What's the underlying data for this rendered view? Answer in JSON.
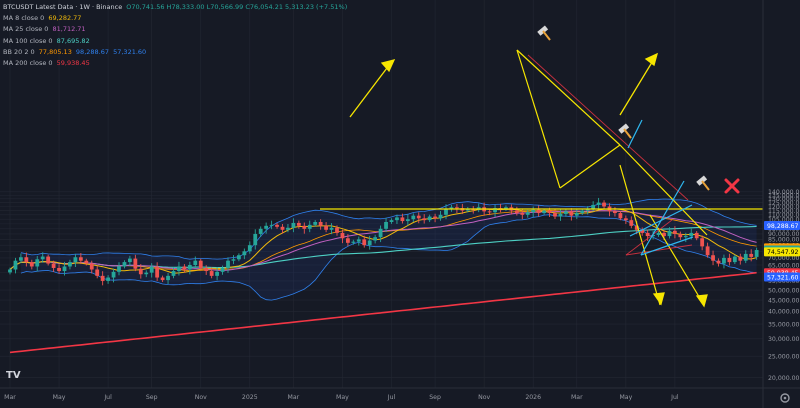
{
  "header": {
    "title": "BTCUSDT Latest Data · 1W · Binance",
    "ohlc": "O70,741.56 H78,333.00 L70,566.99 C76,054.21 5,313.23 (+7.51%)"
  },
  "indicators": [
    {
      "label": "MA 8 close 0",
      "value": "69,282.77",
      "color": "#f0b90b"
    },
    {
      "label": "MA 25 close 0",
      "value": "81,712.71",
      "color": "#c060c0"
    },
    {
      "label": "MA 100 close 0",
      "value": "87,695.82",
      "color": "#4dd0c4"
    },
    {
      "label": "BB 20 2 0",
      "value": "77,805.13",
      "value2": "98,288.67",
      "value3": "57,321.60",
      "color": "#ff9800",
      "color2": "#2f80ed"
    },
    {
      "label": "MA 200 close 0",
      "value": "59,938.45",
      "color": "#f23645"
    }
  ],
  "price_labels": [
    {
      "value": "98,288.67",
      "price": 98288.67,
      "bg": "#2962ff",
      "fg": "#ffffff"
    },
    {
      "value": "77,805.13",
      "price": 77805.13,
      "bg": "#ff9800",
      "fg": "#000000"
    },
    {
      "value": "76,054.21",
      "price": 76054.21,
      "bg": "#26a69a",
      "fg": "#ffffff"
    },
    {
      "value": "74,547.92",
      "price": 74547.92,
      "bg": "#f7e600",
      "fg": "#000000"
    },
    {
      "value": "59,938.45",
      "price": 59938.45,
      "bg": "#f23645",
      "fg": "#ffffff"
    },
    {
      "value": "57,321.60",
      "price": 57321.6,
      "bg": "#2962ff",
      "fg": "#ffffff"
    }
  ],
  "logo_text": "TV",
  "chart_data": {
    "type": "candlestick",
    "y_scale": "log",
    "ylim": [
      20000,
      140000
    ],
    "y_ticks": [
      "20,000.00",
      "25,000.00",
      "30,000.00",
      "35,000.00",
      "40,000.00",
      "45,000.00",
      "50,000.00",
      "55,000.00",
      "60,000.00",
      "65,000.00",
      "70,000.00",
      "75,000.00",
      "80,000.00",
      "85,000.00",
      "90,000.00",
      "95,000.00",
      "100,000.00",
      "105,000.00",
      "110,000.00",
      "115,000.00",
      "120,000.00",
      "125,000.00",
      "130,000.00",
      "135,000.00",
      "140,000.00"
    ],
    "y_tick_values": [
      20000,
      25000,
      30000,
      35000,
      40000,
      45000,
      50000,
      55000,
      60000,
      65000,
      70000,
      75000,
      80000,
      85000,
      90000,
      95000,
      100000,
      105000,
      110000,
      115000,
      120000,
      125000,
      130000,
      135000,
      140000
    ],
    "x_ticks": [
      "Mar",
      "May",
      "Jul",
      "Sep",
      "Nov",
      "2025",
      "Mar",
      "May",
      "Jul",
      "Sep",
      "Nov",
      "2026",
      "Mar",
      "May",
      "Jul"
    ],
    "x_tick_weeks": [
      0,
      9,
      18,
      26,
      35,
      44,
      52,
      61,
      70,
      78,
      87,
      96,
      104,
      113,
      122
    ],
    "horizontal_line": 74547.92,
    "closes": [
      62000,
      68000,
      70500,
      67000,
      64000,
      69000,
      71000,
      66000,
      63000,
      61000,
      64000,
      67000,
      70500,
      68000,
      66000,
      62000,
      58000,
      55000,
      57000,
      60500,
      64000,
      67000,
      69500,
      62500,
      59000,
      60000,
      64000,
      57000,
      55500,
      58000,
      61000,
      64000,
      62000,
      65000,
      68000,
      63000,
      61000,
      58000,
      60500,
      63000,
      68000,
      69000,
      72000,
      75000,
      80000,
      90000,
      95000,
      98000,
      99000,
      97000,
      94000,
      96000,
      101000,
      98000,
      95000,
      99000,
      102000,
      98000,
      94000,
      96000,
      91000,
      86000,
      82000,
      83000,
      85000,
      80000,
      84000,
      87000,
      95000,
      102000,
      104000,
      107000,
      103000,
      105000,
      109000,
      106000,
      104000,
      108000,
      106000,
      110000,
      117000,
      119000,
      118000,
      115000,
      117000,
      116000,
      119000,
      114000,
      113000,
      118000,
      117000,
      119000,
      115000,
      112000,
      110000,
      113000,
      116000,
      112000,
      115000,
      112000,
      108000,
      111000,
      114000,
      109000,
      112000,
      115000,
      117000,
      122000,
      125000,
      120000,
      114000,
      112000,
      106000,
      104000,
      98000,
      94000,
      91000,
      88000,
      89000,
      91000,
      88000,
      93000,
      90000,
      87000,
      88000,
      91000,
      86000,
      79000,
      72000,
      68000,
      66000,
      70000,
      67000,
      71000,
      68000,
      73000,
      70741,
      76054
    ]
  }
}
